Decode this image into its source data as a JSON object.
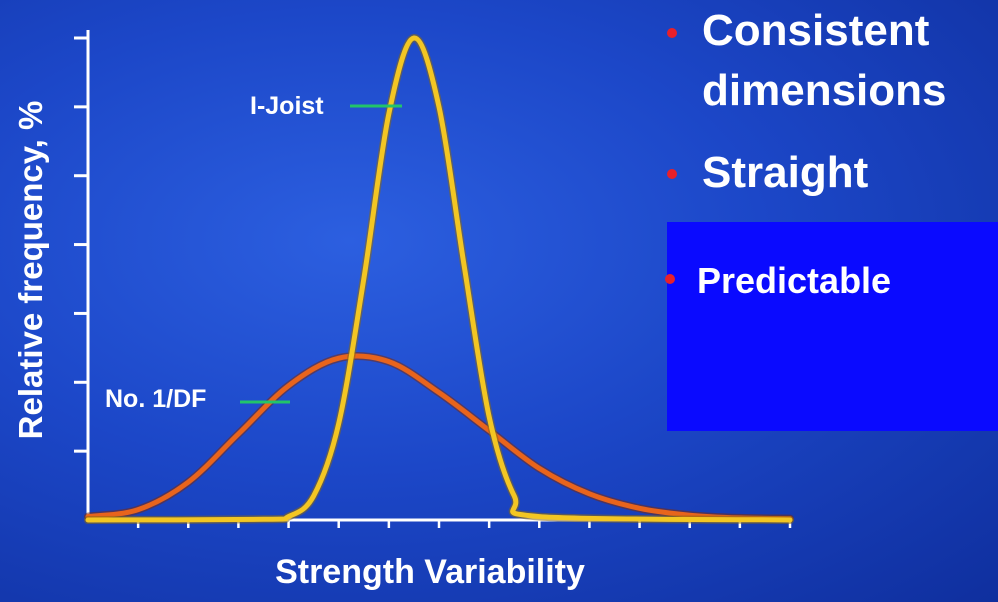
{
  "chart_data": {
    "type": "line",
    "xlabel": "Strength Variability",
    "ylabel": "Relative frequency, %",
    "xlim": [
      0,
      14
    ],
    "ylim": [
      0,
      7
    ],
    "x_ticks": 14,
    "y_ticks": 7,
    "grid": false,
    "series": [
      {
        "name": "I-Joist",
        "color": "#f3c623",
        "x": [
          0,
          3.5,
          4.0,
          4.5,
          5.0,
          5.5,
          6.0,
          6.5,
          7.0,
          7.5,
          8.0,
          8.5,
          9.0,
          14
        ],
        "values": [
          0,
          0.01,
          0.05,
          0.35,
          1.4,
          3.5,
          5.9,
          7.0,
          6.0,
          3.7,
          1.5,
          0.35,
          0.05,
          0
        ]
      },
      {
        "name": "No. 1/DF",
        "color": "#e8641c",
        "x": [
          0,
          1,
          2,
          3,
          4,
          5,
          6,
          7,
          8,
          9,
          10,
          11,
          12,
          13,
          14
        ],
        "values": [
          0.05,
          0.15,
          0.55,
          1.25,
          1.95,
          2.35,
          2.3,
          1.85,
          1.3,
          0.75,
          0.38,
          0.17,
          0.07,
          0.03,
          0.02
        ]
      }
    ]
  },
  "bullets": [
    {
      "text": "Consistent dimensions"
    },
    {
      "text": "Straight"
    },
    {
      "text": "Predictable"
    }
  ],
  "bullet_line1": "Consistent",
  "bullet_line2": "dimensions",
  "bullet_straight": "Straight",
  "bullet_predictable": "Predictable",
  "colors": {
    "bullet_dot": "#e8202a",
    "callout_line": "#22c46a",
    "highlight_box": "#0a0aff",
    "axis": "#ffffff"
  }
}
